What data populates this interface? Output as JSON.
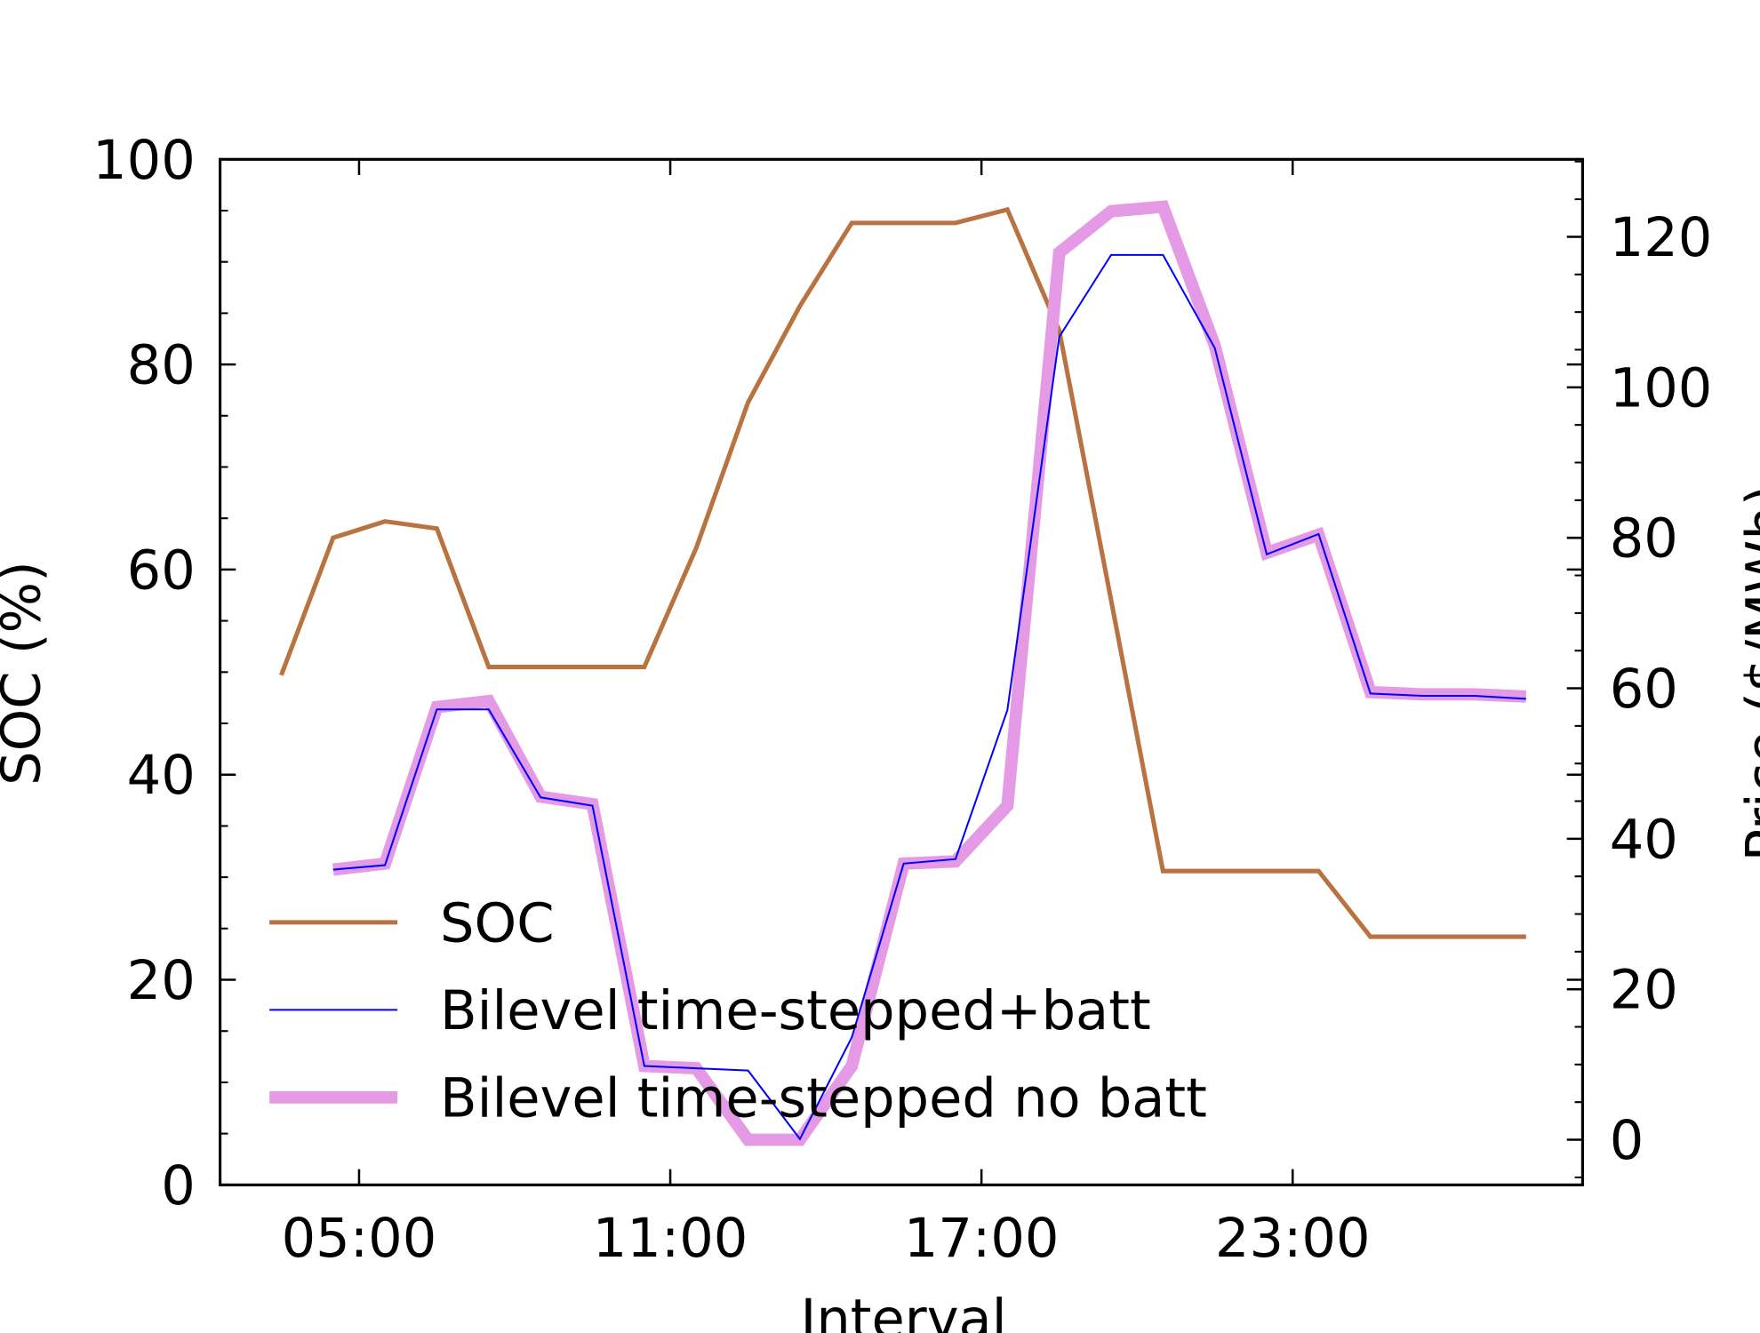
{
  "chart_data": {
    "type": "line",
    "x_label": "Interval",
    "y_label": "SOC (%)",
    "y2_label": "Price ($/MWh)",
    "xlim": [
      2.32,
      28.59
    ],
    "xticks": [
      {
        "value": 5,
        "label": "05:00"
      },
      {
        "value": 11,
        "label": "11:00"
      },
      {
        "value": 17,
        "label": "17:00"
      },
      {
        "value": 23,
        "label": "23:00"
      }
    ],
    "ylim": [
      0,
      100
    ],
    "yticks": [
      0,
      20,
      40,
      60,
      80,
      100
    ],
    "y2lim": [
      -6,
      130.3
    ],
    "y2ticks": [
      0,
      20,
      40,
      60,
      80,
      100,
      120
    ],
    "minor_ticks": true,
    "legend": "lower left",
    "series": [
      {
        "name": "SOC",
        "color": "#b87340",
        "width": 4,
        "x": [
          3.5,
          4.5,
          5.5,
          6.5,
          7.5,
          8.5,
          9.5,
          10.5,
          11.5,
          12.5,
          13.5,
          14.5,
          15.5,
          16.5,
          17.5,
          18.5,
          19.5,
          20.5,
          21.5,
          22.5,
          23.5,
          24.5,
          25.5,
          26.5,
          27.5
        ],
        "values": [
          49.7,
          63.1,
          64.7,
          64,
          50.5,
          50.5,
          50.5,
          50.5,
          62.1,
          76.3,
          85.7,
          93.8,
          93.8,
          93.8,
          95.1,
          83.3,
          57,
          30.6,
          30.6,
          30.6,
          30.6,
          24.2,
          24.2,
          24.2,
          24.2
        ]
      },
      {
        "name": "Bilevel time-stepped no batt",
        "color": "#e49ae4",
        "width": 11,
        "axis": "y2",
        "x": [
          4.5,
          5.5,
          6.5,
          7.5,
          8.5,
          9.5,
          10.5,
          11.5,
          12.5,
          13.5,
          14.5,
          15.5,
          16.5,
          17.5,
          18.5,
          19.5,
          20.5,
          21.5,
          22.5,
          23.5,
          24.5,
          25.5,
          26.5,
          27.5
        ],
        "values": [
          35.9,
          36.7,
          57.5,
          58.3,
          45.6,
          44.6,
          9.8,
          9.5,
          0,
          0,
          9.8,
          36.7,
          37,
          44.4,
          117.9,
          123.4,
          124,
          105.5,
          78,
          80.4,
          59.5,
          59.2,
          59.2,
          58.9
        ]
      },
      {
        "name": "Bilevel time-stepped+batt",
        "color": "#0000ff",
        "width": 1.6,
        "axis": "y2",
        "x": [
          4.5,
          5.5,
          6.5,
          7.5,
          8.5,
          9.5,
          10.5,
          11.5,
          12.5,
          13.5,
          14.5,
          15.5,
          16.5,
          17.5,
          18.5,
          19.5,
          20.5,
          21.5,
          22.5,
          23.5,
          24.5,
          25.5,
          26.5,
          27.5
        ],
        "values": [
          35.9,
          36.5,
          57.2,
          57.2,
          45.5,
          44.4,
          9.8,
          9.5,
          9.2,
          0.1,
          13.6,
          36.7,
          37.3,
          57.1,
          106.7,
          117.6,
          117.6,
          105.2,
          77.8,
          80.5,
          59.3,
          59,
          59,
          58.6
        ]
      }
    ],
    "legend_order": [
      0,
      2,
      1
    ]
  }
}
